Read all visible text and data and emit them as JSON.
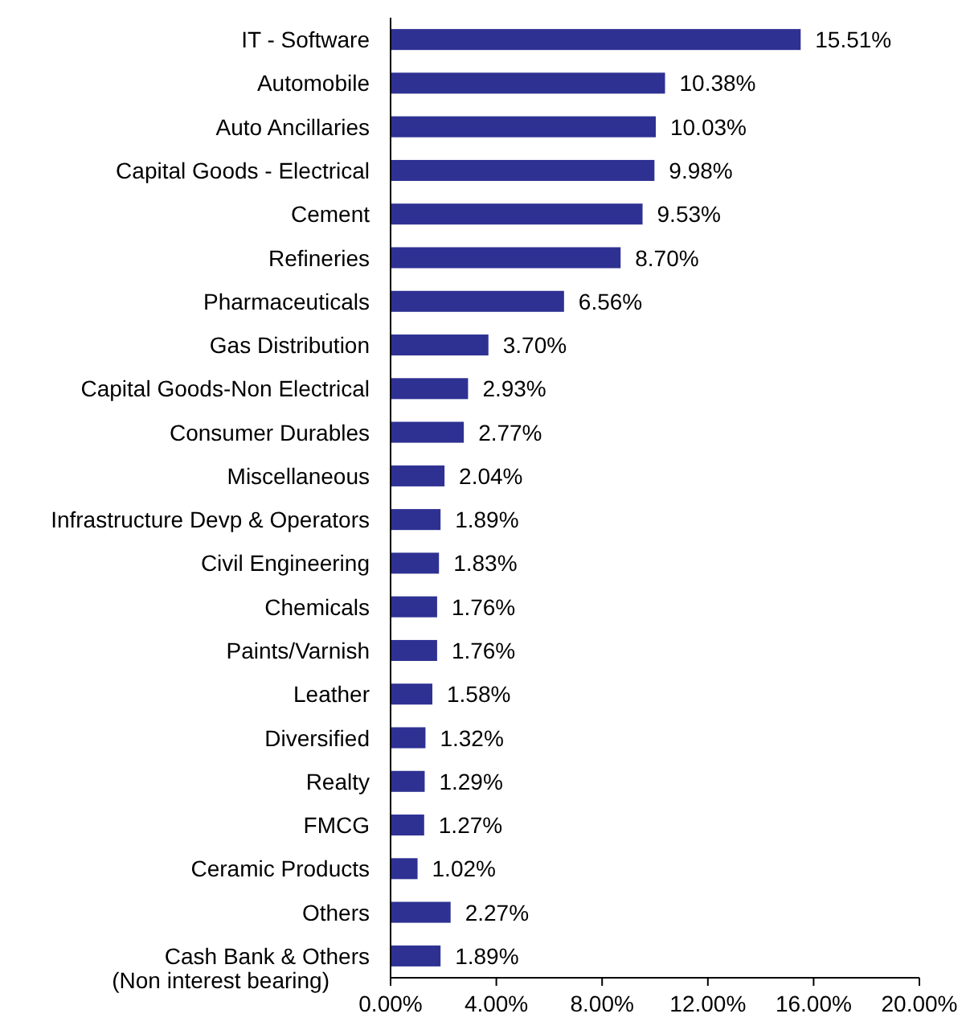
{
  "chart_data": {
    "type": "bar",
    "orientation": "horizontal",
    "categories": [
      "IT - Software",
      "Automobile",
      "Auto Ancillaries",
      "Capital Goods - Electrical",
      "Cement",
      "Refineries",
      "Pharmaceuticals",
      "Gas Distribution",
      "Capital Goods-Non Electrical",
      "Consumer Durables",
      "Miscellaneous",
      "Infrastructure Devp & Operators",
      "Civil Engineering",
      "Chemicals",
      "Paints/Varnish",
      "Leather",
      "Diversified",
      "Realty",
      "FMCG",
      "Ceramic Products",
      "Others",
      "Cash Bank & Others\n(Non interest bearing)"
    ],
    "values": [
      15.51,
      10.38,
      10.03,
      9.98,
      9.53,
      8.7,
      6.56,
      3.7,
      2.93,
      2.77,
      2.04,
      1.89,
      1.83,
      1.76,
      1.76,
      1.58,
      1.32,
      1.29,
      1.27,
      1.02,
      2.27,
      1.89
    ],
    "value_labels": [
      "15.51%",
      "10.38%",
      "10.03%",
      "9.98%",
      "9.53%",
      "8.70%",
      "6.56%",
      "3.70%",
      "2.93%",
      "2.77%",
      "2.04%",
      "1.89%",
      "1.83%",
      "1.76%",
      "1.76%",
      "1.58%",
      "1.32%",
      "1.29%",
      "1.27%",
      "1.02%",
      "2.27%",
      "1.89%"
    ],
    "color": "#2e3192",
    "xlim": [
      0,
      20
    ],
    "xticks": [
      {
        "value": 0,
        "label": "0.00%"
      },
      {
        "value": 4,
        "label": "4.00%"
      },
      {
        "value": 8,
        "label": "8.00%"
      },
      {
        "value": 12,
        "label": "12.00%"
      },
      {
        "value": 16,
        "label": "16.00%"
      },
      {
        "value": 20,
        "label": "20.00%"
      }
    ],
    "grid": false
  }
}
